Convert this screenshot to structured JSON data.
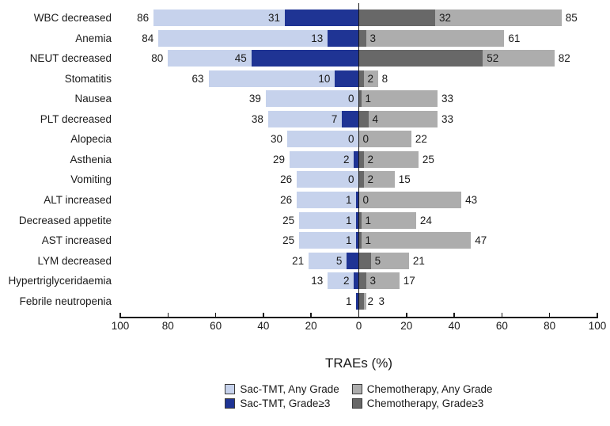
{
  "chart_data": {
    "type": "bar",
    "variant": "diverging-tornado",
    "title": "TRAEs (%)",
    "orientation": "horizontal",
    "axis_max_each_side": 100,
    "grid": false,
    "legend_position": "bottom",
    "categories": [
      "WBC decreased",
      "Anemia",
      "NEUT decreased",
      "Stomatitis",
      "Nausea",
      "PLT decreased",
      "Alopecia",
      "Asthenia",
      "Vomiting",
      "ALT increased",
      "Decreased appetite",
      "AST increased",
      "LYM decreased",
      "Hypertriglyceridaemia",
      "Febrile neutropenia"
    ],
    "series": [
      {
        "name": "Sac-TMT, Any Grade",
        "side": "left",
        "color": "#c6d2ec",
        "values": [
          86,
          84,
          80,
          63,
          39,
          38,
          30,
          29,
          26,
          26,
          25,
          25,
          21,
          13,
          1
        ]
      },
      {
        "name": "Sac-TMT, Grade≥3",
        "side": "left",
        "color": "#1f3494",
        "values": [
          31,
          13,
          45,
          10,
          0,
          7,
          0,
          2,
          0,
          1,
          1,
          1,
          5,
          2,
          1
        ]
      },
      {
        "name": "Chemotherapy, Any Grade",
        "side": "right",
        "color": "#adadad",
        "values": [
          85,
          61,
          82,
          8,
          33,
          33,
          22,
          25,
          15,
          43,
          24,
          47,
          21,
          17,
          3
        ]
      },
      {
        "name": "Chemotherapy, Grade≥3",
        "side": "right",
        "color": "#686868",
        "values": [
          32,
          3,
          52,
          2,
          1,
          4,
          0,
          2,
          2,
          0,
          1,
          1,
          5,
          3,
          2
        ]
      }
    ],
    "value_labels": {
      "left_outer": [
        "86",
        "84",
        "80",
        "63",
        "39",
        "38",
        "30",
        "29",
        "26",
        "26",
        "25",
        "25",
        "21",
        "13",
        "1"
      ],
      "left_inner": [
        "31",
        "13",
        "45",
        "10",
        "0",
        "7",
        "0",
        "2",
        "0",
        "1",
        "1",
        "1",
        "5",
        "2",
        ""
      ],
      "right_inner": [
        "32",
        "3",
        "52",
        "2",
        "1",
        "4",
        "0",
        "2",
        "2",
        "0",
        "1",
        "1",
        "5",
        "3",
        "2"
      ],
      "right_outer": [
        "85",
        "61",
        "82",
        "8",
        "33",
        "33",
        "22",
        "25",
        "15",
        "43",
        "24",
        "47",
        "21",
        "17",
        "3"
      ]
    },
    "x_axis": {
      "tick_labels": [
        "100",
        "80",
        "60",
        "40",
        "20",
        "0",
        "20",
        "40",
        "60",
        "80",
        "100"
      ],
      "xlabel": "TRAEs (%)"
    },
    "legend": [
      {
        "label": "Sac-TMT, Any Grade",
        "color": "#c6d2ec"
      },
      {
        "label": "Sac-TMT, Grade≥3",
        "color": "#1f3494"
      },
      {
        "label": "Chemotherapy, Any Grade",
        "color": "#adadad"
      },
      {
        "label": "Chemotherapy, Grade≥3",
        "color": "#686868"
      }
    ],
    "colors": {
      "axis": "#1a1a1a",
      "text": "#1a1a1a",
      "background": "#ffffff"
    }
  }
}
